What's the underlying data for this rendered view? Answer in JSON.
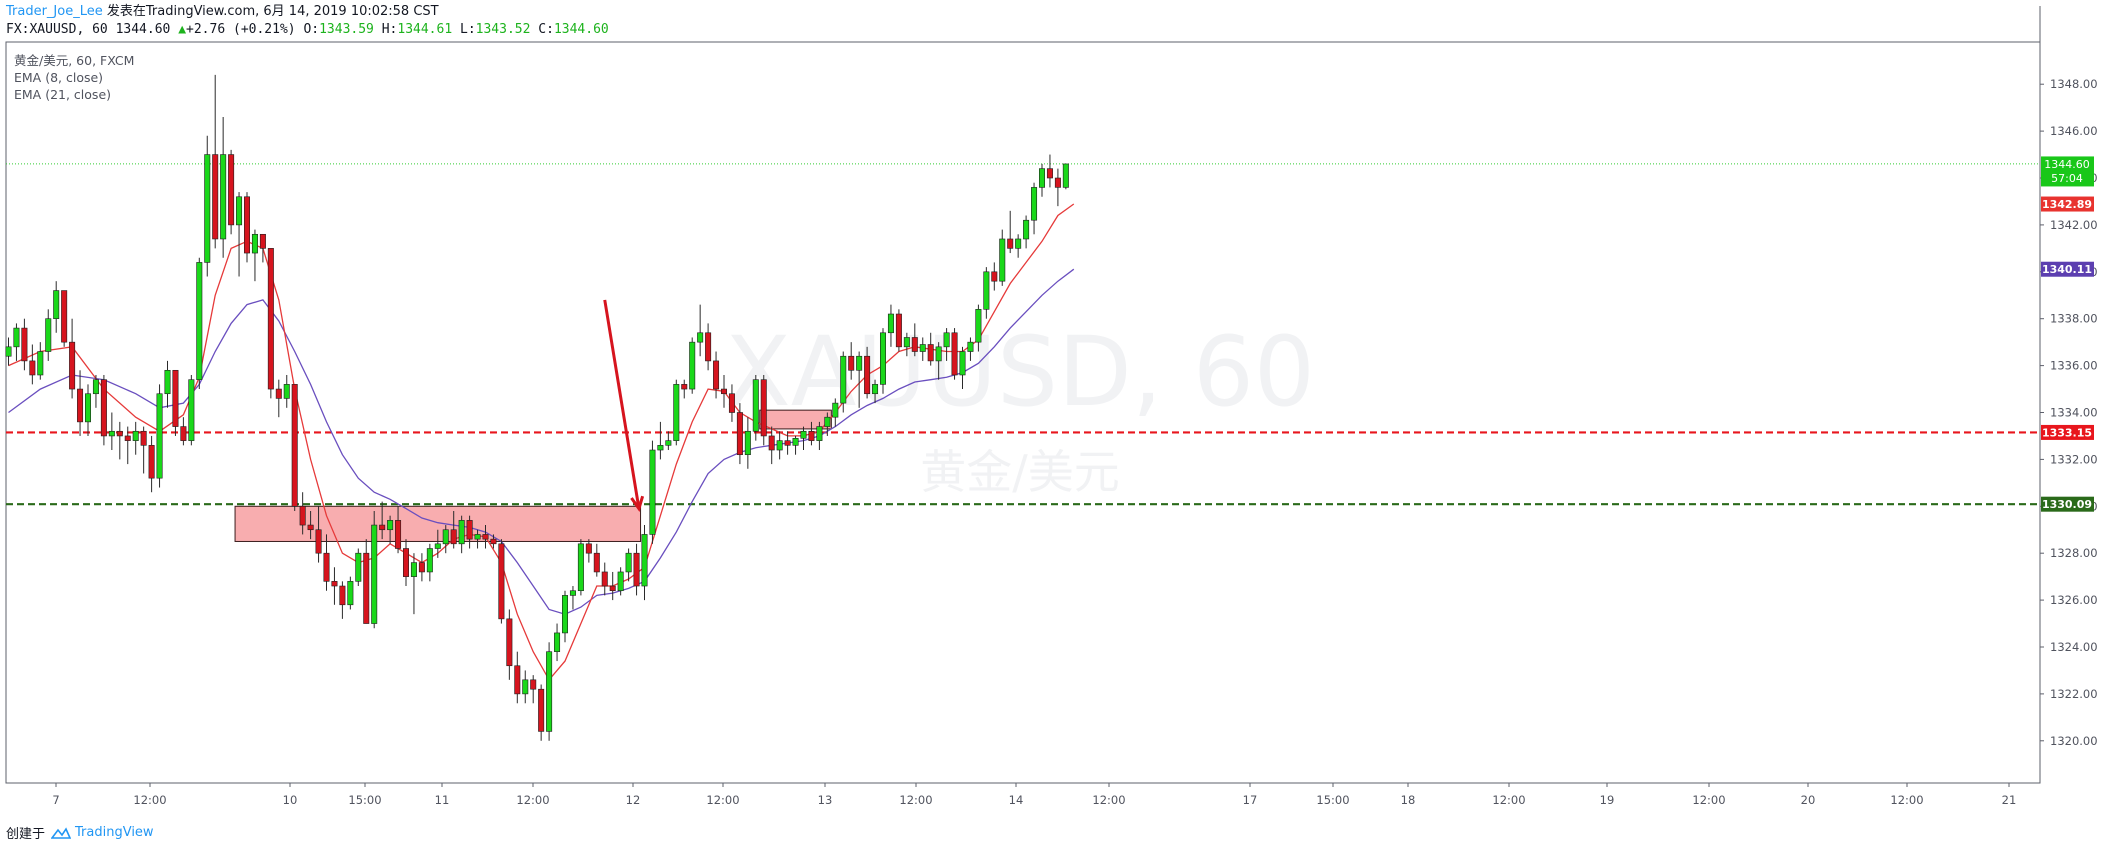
{
  "header": {
    "author": "Trader_Joe_Lee",
    "published": "发表在TradingView.com, 6月 14, 2019 10:02:58 CST",
    "symbol": "FX:XAUUSD, 60",
    "last_price": "1344.60",
    "change": "+2.76 (+0.21%)",
    "open_label": "O:",
    "open": "1343.59",
    "high_label": "H:",
    "high": "1344.61",
    "low_label": "L:",
    "low": "1343.52",
    "close_label": "C:",
    "close": "1344.60"
  },
  "legend": {
    "main": "黄金/美元, 60, FXCM",
    "ema1": "EMA (8, close)",
    "ema2": "EMA (21, close)"
  },
  "watermark": {
    "symbol": "XAUUSD, 60",
    "name": "黄金/美元"
  },
  "footer": {
    "created_with": "创建于",
    "brand": "TradingView"
  },
  "colors": {
    "up": "#1ad81a",
    "down": "#d6141e",
    "ema8": "#e63a3a",
    "ema21": "#6a4fbf",
    "zone_fill": "#f79fa1",
    "red_line": "#e8161d",
    "green_line": "#2a6a1a",
    "price_line": "#33cc33",
    "arrow": "#d6141e"
  },
  "chart_data": {
    "type": "candlestick",
    "y_ticks": [
      "1348.00",
      "1346.00",
      "1344.00",
      "1342.00",
      "1340.00",
      "1338.00",
      "1336.00",
      "1334.00",
      "1332.00",
      "1330.00",
      "1328.00",
      "1326.00",
      "1324.00",
      "1322.00",
      "1320.00"
    ],
    "y_range": [
      1318.2,
      1349.8
    ],
    "x_ticks": [
      "7",
      "12:00",
      "10",
      "15:00",
      "11",
      "12:00",
      "12",
      "12:00",
      "13",
      "12:00",
      "14",
      "12:00",
      "17",
      "15:00",
      "18",
      "12:00",
      "19",
      "12:00",
      "20",
      "12:00",
      "21"
    ],
    "price_labels": {
      "last": {
        "value": 1344.6,
        "text": "1344.60",
        "sub": "57:04"
      },
      "ema8": {
        "value": 1342.89,
        "text": "1342.89"
      },
      "ema21": {
        "value": 1340.11,
        "text": "1340.11"
      },
      "red_level": {
        "value": 1333.15,
        "text": "1333.15"
      },
      "green_level": {
        "value": 1330.09,
        "text": "1330.09"
      }
    },
    "candles": [
      [
        1336.4,
        1337.2,
        1336.0,
        1336.8
      ],
      [
        1336.8,
        1337.8,
        1336.2,
        1337.6
      ],
      [
        1337.6,
        1338.0,
        1335.8,
        1336.2
      ],
      [
        1336.2,
        1336.9,
        1335.2,
        1335.6
      ],
      [
        1335.6,
        1337.0,
        1335.4,
        1336.6
      ],
      [
        1336.6,
        1338.4,
        1336.2,
        1338.0
      ],
      [
        1338.0,
        1339.6,
        1337.4,
        1339.2
      ],
      [
        1339.2,
        1339.2,
        1336.8,
        1337.0
      ],
      [
        1337.0,
        1338.0,
        1334.6,
        1335.0
      ],
      [
        1335.0,
        1335.8,
        1333.0,
        1333.6
      ],
      [
        1333.6,
        1335.2,
        1333.0,
        1334.8
      ],
      [
        1334.8,
        1335.6,
        1334.2,
        1335.4
      ],
      [
        1335.4,
        1335.6,
        1332.6,
        1333.0
      ],
      [
        1333.0,
        1334.0,
        1332.4,
        1333.2
      ],
      [
        1333.2,
        1333.6,
        1332.0,
        1333.0
      ],
      [
        1333.0,
        1333.4,
        1331.8,
        1332.8
      ],
      [
        1332.8,
        1333.6,
        1332.2,
        1333.2
      ],
      [
        1333.2,
        1333.4,
        1331.4,
        1332.6
      ],
      [
        1332.6,
        1333.0,
        1330.6,
        1331.2
      ],
      [
        1331.2,
        1335.2,
        1330.8,
        1334.8
      ],
      [
        1334.8,
        1336.2,
        1334.2,
        1335.8
      ],
      [
        1335.8,
        1335.8,
        1333.0,
        1333.4
      ],
      [
        1333.4,
        1333.8,
        1332.6,
        1332.8
      ],
      [
        1332.8,
        1335.6,
        1332.6,
        1335.4
      ],
      [
        1335.4,
        1340.6,
        1335.0,
        1340.4
      ],
      [
        1340.4,
        1345.8,
        1339.8,
        1345.0
      ],
      [
        1345.0,
        1348.4,
        1341.0,
        1341.4
      ],
      [
        1341.4,
        1346.6,
        1340.6,
        1345.0
      ],
      [
        1345.0,
        1345.2,
        1341.6,
        1342.0
      ],
      [
        1342.0,
        1343.4,
        1339.8,
        1343.2
      ],
      [
        1343.2,
        1343.4,
        1340.4,
        1340.8
      ],
      [
        1340.8,
        1341.8,
        1339.6,
        1341.6
      ],
      [
        1341.6,
        1341.6,
        1340.4,
        1341.0
      ],
      [
        1341.0,
        1341.0,
        1334.6,
        1335.0
      ],
      [
        1335.0,
        1335.4,
        1333.8,
        1334.6
      ],
      [
        1334.6,
        1335.6,
        1334.2,
        1335.2
      ],
      [
        1335.2,
        1335.2,
        1329.8,
        1330.0
      ],
      [
        1330.0,
        1330.6,
        1328.8,
        1329.2
      ],
      [
        1329.2,
        1329.8,
        1328.6,
        1329.0
      ],
      [
        1329.0,
        1330.0,
        1327.6,
        1328.0
      ],
      [
        1328.0,
        1328.8,
        1326.4,
        1326.8
      ],
      [
        1326.8,
        1327.4,
        1325.8,
        1326.6
      ],
      [
        1326.6,
        1326.8,
        1325.2,
        1325.8
      ],
      [
        1325.8,
        1327.0,
        1325.6,
        1326.8
      ],
      [
        1326.8,
        1328.2,
        1326.6,
        1328.0
      ],
      [
        1328.0,
        1328.6,
        1325.0,
        1325.0
      ],
      [
        1325.0,
        1329.8,
        1324.8,
        1329.2
      ],
      [
        1329.2,
        1330.2,
        1328.6,
        1329.0
      ],
      [
        1329.0,
        1329.6,
        1328.4,
        1329.4
      ],
      [
        1329.4,
        1330.0,
        1328.0,
        1328.2
      ],
      [
        1328.2,
        1328.6,
        1326.6,
        1327.0
      ],
      [
        1327.0,
        1328.0,
        1325.4,
        1327.6
      ],
      [
        1327.6,
        1328.0,
        1326.8,
        1327.2
      ],
      [
        1327.2,
        1328.4,
        1326.8,
        1328.2
      ],
      [
        1328.2,
        1329.0,
        1327.8,
        1328.4
      ],
      [
        1328.4,
        1329.2,
        1328.0,
        1329.0
      ],
      [
        1329.0,
        1329.8,
        1328.2,
        1328.4
      ],
      [
        1328.4,
        1329.6,
        1328.0,
        1329.4
      ],
      [
        1329.4,
        1329.6,
        1328.2,
        1328.6
      ],
      [
        1328.6,
        1329.0,
        1328.2,
        1328.8
      ],
      [
        1328.8,
        1329.2,
        1328.2,
        1328.6
      ],
      [
        1328.6,
        1328.8,
        1328.2,
        1328.4
      ],
      [
        1328.4,
        1328.6,
        1325.0,
        1325.2
      ],
      [
        1325.2,
        1325.6,
        1322.6,
        1323.2
      ],
      [
        1323.2,
        1323.8,
        1321.6,
        1322.0
      ],
      [
        1322.0,
        1323.0,
        1321.6,
        1322.6
      ],
      [
        1322.6,
        1322.8,
        1321.6,
        1322.2
      ],
      [
        1322.2,
        1322.4,
        1320.0,
        1320.4
      ],
      [
        1320.4,
        1324.2,
        1320.0,
        1323.8
      ],
      [
        1323.8,
        1325.0,
        1323.4,
        1324.6
      ],
      [
        1324.6,
        1326.4,
        1324.2,
        1326.2
      ],
      [
        1326.2,
        1326.6,
        1325.6,
        1326.4
      ],
      [
        1326.4,
        1328.6,
        1326.2,
        1328.4
      ],
      [
        1328.4,
        1328.6,
        1327.6,
        1328.0
      ],
      [
        1328.0,
        1328.4,
        1327.0,
        1327.2
      ],
      [
        1327.2,
        1327.6,
        1326.2,
        1326.6
      ],
      [
        1326.6,
        1327.2,
        1326.0,
        1326.4
      ],
      [
        1326.4,
        1327.4,
        1326.2,
        1327.2
      ],
      [
        1327.2,
        1328.2,
        1326.8,
        1328.0
      ],
      [
        1328.0,
        1328.4,
        1326.2,
        1326.6
      ],
      [
        1326.6,
        1329.2,
        1326.0,
        1328.8
      ],
      [
        1328.8,
        1332.8,
        1328.4,
        1332.4
      ],
      [
        1332.4,
        1333.6,
        1332.0,
        1332.6
      ],
      [
        1332.6,
        1333.2,
        1332.4,
        1332.8
      ],
      [
        1332.8,
        1335.4,
        1332.6,
        1335.2
      ],
      [
        1335.2,
        1335.4,
        1334.6,
        1335.0
      ],
      [
        1335.0,
        1337.2,
        1334.8,
        1337.0
      ],
      [
        1337.0,
        1338.6,
        1336.4,
        1337.4
      ],
      [
        1337.4,
        1337.8,
        1335.8,
        1336.2
      ],
      [
        1336.2,
        1336.6,
        1334.6,
        1335.0
      ],
      [
        1335.0,
        1335.6,
        1334.2,
        1334.8
      ],
      [
        1334.8,
        1335.2,
        1333.6,
        1334.0
      ],
      [
        1334.0,
        1334.4,
        1331.8,
        1332.2
      ],
      [
        1332.2,
        1333.8,
        1331.6,
        1333.2
      ],
      [
        1333.2,
        1335.6,
        1332.8,
        1335.4
      ],
      [
        1335.4,
        1335.6,
        1332.6,
        1333.0
      ],
      [
        1333.0,
        1333.4,
        1331.8,
        1332.4
      ],
      [
        1332.4,
        1333.2,
        1332.0,
        1332.8
      ],
      [
        1332.8,
        1333.2,
        1332.2,
        1332.6
      ],
      [
        1332.6,
        1333.0,
        1332.2,
        1332.9
      ],
      [
        1332.9,
        1333.4,
        1332.4,
        1333.2
      ],
      [
        1333.2,
        1333.6,
        1332.6,
        1332.8
      ],
      [
        1332.8,
        1333.6,
        1332.4,
        1333.4
      ],
      [
        1333.4,
        1334.0,
        1333.0,
        1333.8
      ],
      [
        1333.8,
        1334.6,
        1333.4,
        1334.4
      ],
      [
        1334.4,
        1336.6,
        1334.0,
        1336.4
      ],
      [
        1336.4,
        1337.0,
        1335.4,
        1335.8
      ],
      [
        1335.8,
        1336.6,
        1334.2,
        1336.4
      ],
      [
        1336.4,
        1336.8,
        1334.6,
        1334.8
      ],
      [
        1334.8,
        1335.4,
        1334.4,
        1335.2
      ],
      [
        1335.2,
        1337.6,
        1334.8,
        1337.4
      ],
      [
        1337.4,
        1338.6,
        1336.8,
        1338.2
      ],
      [
        1338.2,
        1338.4,
        1336.6,
        1336.8
      ],
      [
        1336.8,
        1337.4,
        1336.4,
        1337.2
      ],
      [
        1337.2,
        1337.8,
        1336.4,
        1336.6
      ],
      [
        1336.6,
        1337.2,
        1336.2,
        1336.9
      ],
      [
        1336.9,
        1337.4,
        1336.0,
        1336.2
      ],
      [
        1336.2,
        1337.0,
        1335.4,
        1336.8
      ],
      [
        1336.8,
        1337.6,
        1336.2,
        1337.4
      ],
      [
        1337.4,
        1337.6,
        1335.4,
        1335.6
      ],
      [
        1335.6,
        1336.8,
        1335.0,
        1336.6
      ],
      [
        1336.6,
        1337.2,
        1336.2,
        1337.0
      ],
      [
        1337.0,
        1338.6,
        1336.6,
        1338.4
      ],
      [
        1338.4,
        1340.2,
        1338.0,
        1340.0
      ],
      [
        1340.0,
        1340.4,
        1339.2,
        1339.6
      ],
      [
        1339.6,
        1341.8,
        1339.4,
        1341.4
      ],
      [
        1341.4,
        1342.6,
        1340.8,
        1341.0
      ],
      [
        1341.0,
        1341.6,
        1340.6,
        1341.4
      ],
      [
        1341.4,
        1342.4,
        1341.0,
        1342.2
      ],
      [
        1342.2,
        1343.8,
        1341.6,
        1343.6
      ],
      [
        1343.6,
        1344.6,
        1343.2,
        1344.4
      ],
      [
        1344.4,
        1345.0,
        1343.6,
        1344.0
      ],
      [
        1344.0,
        1344.4,
        1342.8,
        1343.6
      ],
      [
        1343.6,
        1344.61,
        1343.52,
        1344.6
      ]
    ],
    "ema8": [
      [
        0,
        1336.0
      ],
      [
        4,
        1336.6
      ],
      [
        8,
        1336.8
      ],
      [
        12,
        1335.0
      ],
      [
        16,
        1333.8
      ],
      [
        19,
        1333.2
      ],
      [
        22,
        1333.9
      ],
      [
        24,
        1335.5
      ],
      [
        26,
        1339.0
      ],
      [
        28,
        1341.0
      ],
      [
        30,
        1341.3
      ],
      [
        32,
        1341.0
      ],
      [
        34,
        1338.8
      ],
      [
        36,
        1335.0
      ],
      [
        38,
        1332.0
      ],
      [
        40,
        1329.6
      ],
      [
        42,
        1328.0
      ],
      [
        44,
        1327.6
      ],
      [
        46,
        1327.8
      ],
      [
        48,
        1328.4
      ],
      [
        50,
        1328.0
      ],
      [
        52,
        1327.6
      ],
      [
        54,
        1328.0
      ],
      [
        56,
        1328.6
      ],
      [
        58,
        1328.8
      ],
      [
        60,
        1328.7
      ],
      [
        62,
        1327.6
      ],
      [
        64,
        1325.4
      ],
      [
        66,
        1323.8
      ],
      [
        68,
        1322.6
      ],
      [
        70,
        1323.4
      ],
      [
        72,
        1325.0
      ],
      [
        74,
        1326.6
      ],
      [
        76,
        1326.6
      ],
      [
        78,
        1326.9
      ],
      [
        80,
        1327.4
      ],
      [
        82,
        1329.6
      ],
      [
        84,
        1331.8
      ],
      [
        86,
        1333.6
      ],
      [
        88,
        1335.0
      ],
      [
        90,
        1334.9
      ],
      [
        92,
        1334.0
      ],
      [
        94,
        1333.6
      ],
      [
        96,
        1333.3
      ],
      [
        98,
        1333.0
      ],
      [
        100,
        1333.0
      ],
      [
        102,
        1333.2
      ],
      [
        104,
        1334.0
      ],
      [
        106,
        1334.9
      ],
      [
        108,
        1335.6
      ],
      [
        110,
        1336.0
      ],
      [
        112,
        1336.6
      ],
      [
        114,
        1336.8
      ],
      [
        116,
        1336.7
      ],
      [
        118,
        1336.6
      ],
      [
        120,
        1336.6
      ],
      [
        122,
        1337.1
      ],
      [
        124,
        1338.3
      ],
      [
        126,
        1339.5
      ],
      [
        128,
        1340.4
      ],
      [
        130,
        1341.3
      ],
      [
        132,
        1342.4
      ],
      [
        134,
        1342.89
      ]
    ],
    "ema21": [
      [
        0,
        1334.0
      ],
      [
        4,
        1335.0
      ],
      [
        8,
        1335.6
      ],
      [
        12,
        1335.4
      ],
      [
        16,
        1334.8
      ],
      [
        19,
        1334.2
      ],
      [
        22,
        1334.4
      ],
      [
        24,
        1335.2
      ],
      [
        26,
        1336.6
      ],
      [
        28,
        1337.8
      ],
      [
        30,
        1338.6
      ],
      [
        32,
        1338.8
      ],
      [
        34,
        1337.9
      ],
      [
        36,
        1336.6
      ],
      [
        38,
        1335.2
      ],
      [
        40,
        1333.6
      ],
      [
        42,
        1332.2
      ],
      [
        44,
        1331.2
      ],
      [
        46,
        1330.6
      ],
      [
        48,
        1330.3
      ],
      [
        50,
        1329.9
      ],
      [
        52,
        1329.5
      ],
      [
        54,
        1329.3
      ],
      [
        56,
        1329.2
      ],
      [
        58,
        1329.1
      ],
      [
        60,
        1328.9
      ],
      [
        62,
        1328.5
      ],
      [
        64,
        1327.6
      ],
      [
        66,
        1326.6
      ],
      [
        68,
        1325.6
      ],
      [
        70,
        1325.4
      ],
      [
        72,
        1325.7
      ],
      [
        74,
        1326.2
      ],
      [
        76,
        1326.3
      ],
      [
        78,
        1326.5
      ],
      [
        80,
        1326.8
      ],
      [
        82,
        1327.8
      ],
      [
        84,
        1328.9
      ],
      [
        86,
        1330.2
      ],
      [
        88,
        1331.4
      ],
      [
        90,
        1332.0
      ],
      [
        92,
        1332.3
      ],
      [
        94,
        1332.5
      ],
      [
        96,
        1332.6
      ],
      [
        98,
        1332.7
      ],
      [
        100,
        1332.8
      ],
      [
        102,
        1333.0
      ],
      [
        104,
        1333.4
      ],
      [
        106,
        1333.9
      ],
      [
        108,
        1334.3
      ],
      [
        110,
        1334.6
      ],
      [
        112,
        1335.0
      ],
      [
        114,
        1335.3
      ],
      [
        116,
        1335.4
      ],
      [
        118,
        1335.5
      ],
      [
        120,
        1335.7
      ],
      [
        122,
        1336.1
      ],
      [
        124,
        1336.8
      ],
      [
        126,
        1337.6
      ],
      [
        128,
        1338.3
      ],
      [
        130,
        1339.0
      ],
      [
        132,
        1339.6
      ],
      [
        134,
        1340.11
      ]
    ],
    "zones": [
      {
        "from": 29,
        "to": 79,
        "top": 1330.0,
        "bottom": 1328.5
      },
      {
        "from": 95,
        "to": 103,
        "top": 1334.1,
        "bottom": 1333.3
      }
    ],
    "arrow": {
      "from": [
        75,
        1338.8
      ],
      "to": [
        79.3,
        1329.9
      ]
    }
  }
}
